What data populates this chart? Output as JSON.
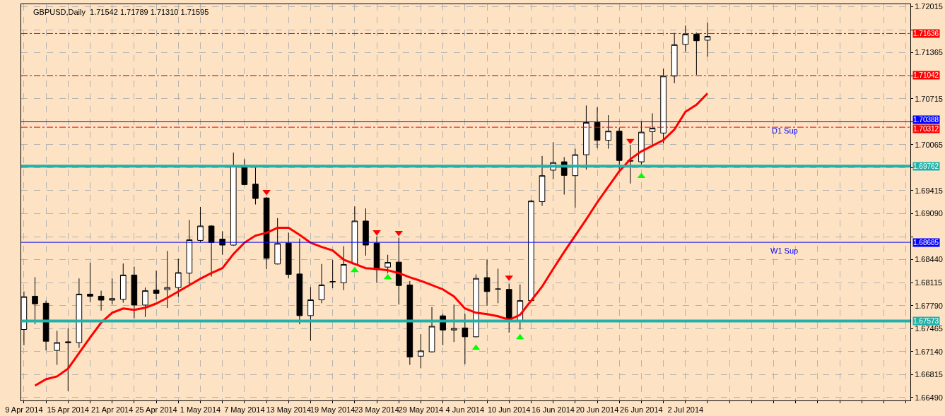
{
  "chart_data": {
    "type": "candlestick",
    "title": "GBPUSD,Daily  1.71542 1.71789 1.71310 1.71595",
    "categories": [
      "9 Apr 2014",
      null,
      null,
      null,
      "15 Apr 2014",
      null,
      null,
      null,
      "21 Apr 2014",
      null,
      null,
      null,
      "25 Apr 2014",
      null,
      null,
      null,
      "1 May 2014",
      null,
      null,
      null,
      "7 May 2014",
      null,
      null,
      null,
      "13 May 2014",
      null,
      null,
      null,
      "19 May 2014",
      null,
      null,
      null,
      "23 May 2014",
      null,
      null,
      null,
      "29 May 2014",
      null,
      null,
      null,
      "4 Jun 2014",
      null,
      null,
      null,
      "10 Jun 2014",
      null,
      null,
      null,
      "16 Jun 2014",
      null,
      null,
      null,
      "20 Jun 2014",
      null,
      null,
      null,
      "26 Jun 2014",
      null,
      null,
      null,
      "2 Jul 2014",
      null,
      null,
      null,
      null,
      null,
      null,
      null,
      null,
      null,
      null,
      null,
      null,
      null,
      null,
      null,
      null,
      null,
      null,
      null,
      null
    ],
    "ohlc": [
      [
        1.67453,
        1.6799,
        1.67231,
        1.67916
      ],
      [
        1.67923,
        1.68194,
        1.67527,
        1.67816
      ],
      [
        1.67824,
        1.67861,
        1.67157,
        1.67287
      ],
      [
        1.67157,
        1.67435,
        1.66953,
        1.67268
      ],
      [
        1.67279,
        1.67472,
        1.66583,
        1.67268
      ],
      [
        1.67268,
        1.68175,
        1.67194,
        1.67953
      ],
      [
        1.67953,
        1.68398,
        1.67842,
        1.67923
      ],
      [
        1.67923,
        1.68001,
        1.6772,
        1.67868
      ],
      [
        1.67868,
        1.68175,
        1.67805,
        1.6789
      ],
      [
        1.67879,
        1.68386,
        1.67831,
        1.68223
      ],
      [
        1.68223,
        1.68342,
        1.67609,
        1.67798
      ],
      [
        1.67798,
        1.68046,
        1.67631,
        1.68001
      ],
      [
        1.68009,
        1.68286,
        1.67879,
        1.67964
      ],
      [
        1.68016,
        1.68564,
        1.67757,
        1.68046
      ],
      [
        1.68046,
        1.68453,
        1.67916,
        1.68257
      ],
      [
        1.68249,
        1.69001,
        1.68083,
        1.6872
      ],
      [
        1.68712,
        1.69186,
        1.68683,
        1.68916
      ],
      [
        1.68916,
        1.68927,
        1.68201,
        1.68683
      ],
      [
        1.68731,
        1.68842,
        1.68509,
        1.68646
      ],
      [
        1.68646,
        1.69953,
        1.68638,
        1.69768
      ],
      [
        1.69749,
        1.6986,
        1.6949,
        1.69501
      ],
      [
        1.69508,
        1.69742,
        1.6922,
        1.69305
      ],
      [
        1.69312,
        1.69323,
        1.68305,
        1.6846
      ],
      [
        1.68379,
        1.69027,
        1.68372,
        1.68668
      ],
      [
        1.68675,
        1.68823,
        1.68175,
        1.68231
      ],
      [
        1.68238,
        1.68738,
        1.67527,
        1.67649
      ],
      [
        1.67649,
        1.68053,
        1.67294,
        1.67872
      ],
      [
        1.67872,
        1.68379,
        1.67824,
        1.68083
      ],
      [
        1.68127,
        1.68435,
        1.68038,
        1.6813
      ],
      [
        1.68112,
        1.68631,
        1.68009,
        1.68372
      ],
      [
        1.68379,
        1.69194,
        1.68372,
        1.68986
      ],
      [
        1.68986,
        1.69164,
        1.68497,
        1.68646
      ],
      [
        1.68675,
        1.68768,
        1.68112,
        1.68298
      ],
      [
        1.68335,
        1.68509,
        1.68249,
        1.68401
      ],
      [
        1.68405,
        1.68749,
        1.67805,
        1.68075
      ],
      [
        1.68083,
        1.68138,
        1.66953,
        1.67064
      ],
      [
        1.67076,
        1.67387,
        1.66905,
        1.6715
      ],
      [
        1.67138,
        1.67768,
        1.67127,
        1.67498
      ],
      [
        1.67646,
        1.67675,
        1.67231,
        1.67446
      ],
      [
        1.67446,
        1.67805,
        1.67276,
        1.67468
      ],
      [
        1.67475,
        1.67675,
        1.66964,
        1.6735
      ],
      [
        1.6735,
        1.68231,
        1.67342,
        1.68175
      ],
      [
        1.68186,
        1.68442,
        1.67787,
        1.6799
      ],
      [
        1.68027,
        1.68312,
        1.67824,
        1.68024
      ],
      [
        1.6802,
        1.68101,
        1.67409,
        1.67594
      ],
      [
        1.67583,
        1.6809,
        1.67453,
        1.67861
      ],
      [
        1.67861,
        1.69286,
        1.67853,
        1.69268
      ],
      [
        1.6926,
        1.69905,
        1.69201,
        1.69627
      ],
      [
        1.69705,
        1.70101,
        1.69575,
        1.69812
      ],
      [
        1.69823,
        1.6989,
        1.6936,
        1.69631
      ],
      [
        1.69627,
        1.70008,
        1.69175,
        1.69923
      ],
      [
        1.69923,
        1.70619,
        1.69712,
        1.70379
      ],
      [
        1.70379,
        1.70593,
        1.70016,
        1.70127
      ],
      [
        1.70127,
        1.70482,
        1.70008,
        1.70256
      ],
      [
        1.70256,
        1.70305,
        1.69712,
        1.69842
      ],
      [
        1.69842,
        1.70064,
        1.69516,
        1.69834
      ],
      [
        1.69823,
        1.70397,
        1.69786,
        1.70242
      ],
      [
        1.70249,
        1.70508,
        1.70053,
        1.70297
      ],
      [
        1.7023,
        1.71138,
        1.70082,
        1.71034
      ],
      [
        1.71034,
        1.71645,
        1.70934,
        1.71478
      ],
      [
        1.71482,
        1.71749,
        1.71378,
        1.71627
      ],
      [
        1.71627,
        1.7165,
        1.71053,
        1.71534
      ],
      [
        1.71542,
        1.71789,
        1.7131,
        1.71595
      ],
      null,
      null,
      null,
      null,
      null,
      null,
      null,
      null,
      null,
      null,
      null,
      null,
      null,
      null,
      null,
      null,
      null,
      null
    ],
    "color": "#000000",
    "series": [
      {
        "type": "line",
        "color": "#ff0000",
        "values": [
          null,
          1.6666,
          1.6675,
          1.6679,
          1.669,
          1.6712,
          1.6734,
          1.6755,
          1.6769,
          1.6775,
          1.6773,
          1.6776,
          1.6782,
          1.679,
          1.6799,
          1.6808,
          1.6817,
          1.6825,
          1.6832,
          1.6852,
          1.6868,
          1.6878,
          1.6882,
          1.6889,
          1.6889,
          1.6879,
          1.6868,
          1.6862,
          1.6857,
          1.6844,
          1.6838,
          1.6832,
          1.6831,
          1.6829,
          1.6825,
          1.6819,
          1.6814,
          1.6808,
          1.6802,
          1.6792,
          1.6775,
          1.6769,
          1.6767,
          1.6764,
          1.6759,
          1.6766,
          1.6786,
          1.6806,
          1.6831,
          1.6855,
          1.6878,
          1.6901,
          1.6925,
          1.6947,
          1.6969,
          1.6986,
          1.6997,
          1.7005,
          1.7013,
          1.7028,
          1.7053,
          1.7063,
          1.7079,
          null,
          null,
          null,
          null,
          null,
          null,
          null,
          null,
          null,
          null,
          null,
          null,
          null,
          null,
          null,
          null,
          null,
          null
        ]
      },
      {
        "type": "scatter",
        "marker": "triangle",
        "color": "#ff0000",
        "values": [
          null,
          null,
          null,
          null,
          null,
          null,
          null,
          null,
          null,
          null,
          null,
          null,
          null,
          null,
          null,
          null,
          null,
          null,
          null,
          null,
          null,
          null,
          1.694,
          null,
          null,
          null,
          null,
          null,
          null,
          null,
          null,
          null,
          1.6883,
          null,
          1.6882,
          null,
          null,
          null,
          null,
          null,
          null,
          null,
          null,
          null,
          1.6819,
          null,
          null,
          null,
          null,
          null,
          null,
          null,
          null,
          null,
          null,
          1.7012,
          null,
          null,
          null,
          null,
          null,
          null,
          null,
          null,
          null,
          null,
          null,
          null,
          null,
          null,
          null,
          null,
          null,
          null,
          null,
          null,
          null,
          null,
          null,
          null,
          null
        ]
      },
      {
        "type": "scatter",
        "marker": "triangle",
        "color": "#00ff00",
        "values": [
          null,
          null,
          null,
          null,
          null,
          null,
          null,
          null,
          null,
          null,
          null,
          null,
          null,
          null,
          null,
          null,
          null,
          null,
          null,
          null,
          null,
          null,
          null,
          null,
          null,
          null,
          null,
          null,
          null,
          null,
          1.6829,
          null,
          null,
          1.6819,
          null,
          null,
          null,
          null,
          null,
          null,
          null,
          1.6719,
          null,
          null,
          null,
          1.6734,
          null,
          null,
          null,
          null,
          null,
          null,
          null,
          null,
          null,
          null,
          1.6962,
          null,
          null,
          null,
          null,
          null,
          null,
          null,
          null,
          null,
          null,
          null,
          null,
          null,
          null,
          null,
          null,
          null,
          null,
          null,
          null,
          null,
          null,
          null,
          null
        ]
      }
    ],
    "ylim": [
      1.6645,
      1.7205
    ],
    "yticks": [
      {
        "value": 1.72015,
        "label": "1.72015"
      },
      {
        "value": 1.7169,
        "label": null
      },
      {
        "value": 1.71365,
        "label": "1.71365"
      },
      {
        "value": 1.7104,
        "label": null
      },
      {
        "value": 1.70715,
        "label": "1.70715"
      },
      {
        "value": 1.7039,
        "label": null
      },
      {
        "value": 1.70065,
        "label": "1.70065"
      },
      {
        "value": 1.6974,
        "label": null
      },
      {
        "value": 1.69415,
        "label": "1.69415"
      },
      {
        "value": 1.6909,
        "label": "1.69090"
      },
      {
        "value": 1.68765,
        "label": null
      },
      {
        "value": 1.6844,
        "label": "1.68440"
      },
      {
        "value": 1.68115,
        "label": "1.68115"
      },
      {
        "value": 1.6779,
        "label": "1.67790"
      },
      {
        "value": 1.67465,
        "label": "1.67465"
      },
      {
        "value": 1.6714,
        "label": "1.67140"
      },
      {
        "value": 1.66815,
        "label": "1.66815"
      },
      {
        "value": 1.6649,
        "label": "1.66490"
      }
    ],
    "ref_lines": [
      {
        "axis": "y",
        "value": 1.71636,
        "label": "1.71636",
        "color": "#ff0000",
        "line_style": "dashed"
      },
      {
        "axis": "y",
        "value": 1.71042,
        "label": "1.71042",
        "color": "#ff0000",
        "line_style": "dashed"
      },
      {
        "axis": "y",
        "value": 1.70388,
        "label": "1.70388",
        "color": "#0000ff",
        "line_style": "solid"
      },
      {
        "axis": "y",
        "value": 1.70312,
        "label": "1.70312",
        "color": "#ff0000",
        "line_style": "dashed"
      },
      {
        "axis": "y",
        "value": 1.69762,
        "label": "1.69762",
        "color": "#20b2aa",
        "line_style": "solid"
      },
      {
        "axis": "y",
        "value": 1.68685,
        "label": "1.68685",
        "color": "#0000ff",
        "line_style": "solid"
      },
      {
        "axis": "y",
        "value": 1.67573,
        "label": "1.67573",
        "color": "#20b2aa",
        "line_style": "solid"
      }
    ],
    "annotations": [
      {
        "text": "D1 Sup",
        "y": 1.70388
      },
      {
        "text": "W1 Sup",
        "y": 1.68685
      }
    ],
    "grid": true
  }
}
